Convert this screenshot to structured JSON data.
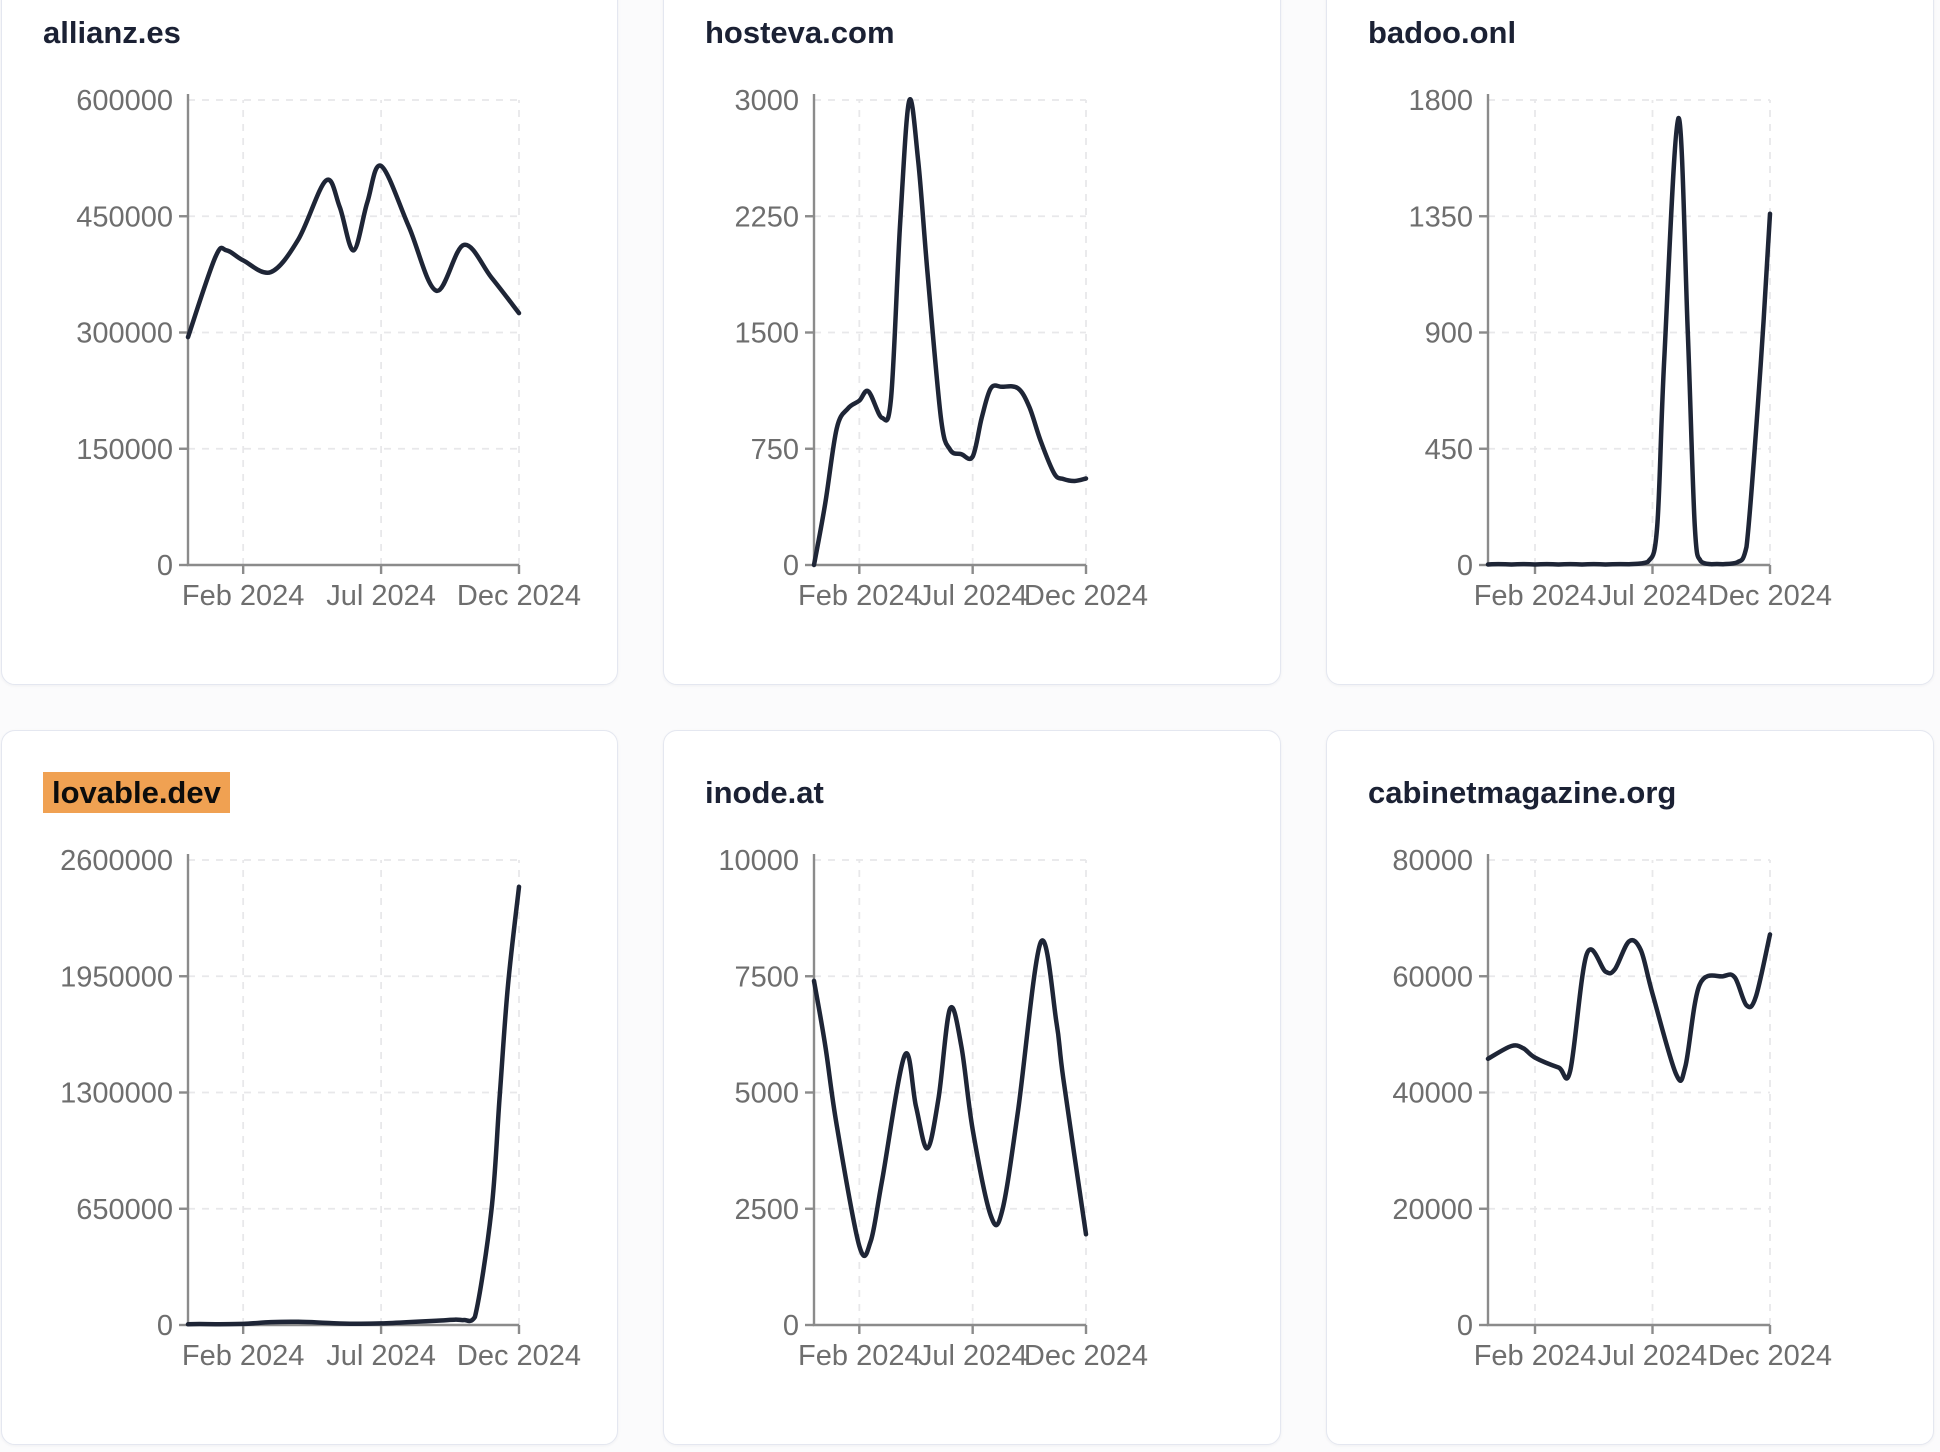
{
  "page": {
    "background": "#fbfbfc",
    "card_background": "#ffffff",
    "card_border_color": "#e4e7f0",
    "title_color": "#1b2134",
    "highlight_color": "#f0a152",
    "line_color": "#1e2536",
    "axis_color": "#8b8b8b",
    "tick_label_color": "#6e6e6e",
    "grid_color": "#e8e8ea"
  },
  "chart_data": [
    {
      "type": "line",
      "title": "allianz.es",
      "highlighted": false,
      "x_domain": [
        0,
        12
      ],
      "x_tick_positions": [
        2,
        7,
        12
      ],
      "x_tick_labels": [
        "Feb 2024",
        "Jul 2024",
        "Dec 2024"
      ],
      "y_ticks": [
        0,
        150000,
        300000,
        450000,
        600000
      ],
      "y_max": 600000,
      "points": [
        [
          0,
          294000
        ],
        [
          1,
          398000
        ],
        [
          1.4,
          406000
        ],
        [
          2,
          393000
        ],
        [
          3,
          378000
        ],
        [
          4,
          420000
        ],
        [
          5,
          496000
        ],
        [
          5.5,
          462000
        ],
        [
          6,
          406000
        ],
        [
          6.5,
          468000
        ],
        [
          7,
          515000
        ],
        [
          8,
          437000
        ],
        [
          9,
          354000
        ],
        [
          10,
          413000
        ],
        [
          11,
          371000
        ],
        [
          12,
          325000
        ]
      ]
    },
    {
      "type": "line",
      "title": "hosteva.com",
      "highlighted": false,
      "x_domain": [
        0,
        12
      ],
      "x_tick_positions": [
        2,
        7,
        12
      ],
      "x_tick_labels": [
        "Feb 2024",
        "Jul 2024",
        "Dec 2024"
      ],
      "y_ticks": [
        0,
        750,
        1500,
        2250,
        3000
      ],
      "y_max": 3000,
      "points": [
        [
          0,
          0
        ],
        [
          0.5,
          400
        ],
        [
          1,
          880
        ],
        [
          1.5,
          1010
        ],
        [
          2,
          1060
        ],
        [
          2.4,
          1120
        ],
        [
          3,
          950
        ],
        [
          3.4,
          1080
        ],
        [
          3.8,
          2200
        ],
        [
          4.2,
          2995
        ],
        [
          4.6,
          2600
        ],
        [
          5,
          1900
        ],
        [
          5.6,
          950
        ],
        [
          6,
          745
        ],
        [
          6.5,
          715
        ],
        [
          7,
          700
        ],
        [
          7.4,
          950
        ],
        [
          7.8,
          1140
        ],
        [
          8.3,
          1150
        ],
        [
          9,
          1140
        ],
        [
          9.5,
          1020
        ],
        [
          10,
          800
        ],
        [
          10.6,
          590
        ],
        [
          11,
          555
        ],
        [
          11.5,
          542
        ],
        [
          12,
          558
        ]
      ]
    },
    {
      "type": "line",
      "title": "badoo.onl",
      "highlighted": false,
      "x_domain": [
        0,
        12
      ],
      "x_tick_positions": [
        2,
        7,
        12
      ],
      "x_tick_labels": [
        "Feb 2024",
        "Jul 2024",
        "Dec 2024"
      ],
      "y_ticks": [
        0,
        450,
        900,
        1350,
        1800
      ],
      "y_max": 1800,
      "points": [
        [
          0,
          2
        ],
        [
          1,
          2
        ],
        [
          2,
          2
        ],
        [
          3,
          2
        ],
        [
          4,
          2
        ],
        [
          5,
          2
        ],
        [
          6,
          3
        ],
        [
          6.8,
          12
        ],
        [
          7.2,
          150
        ],
        [
          7.5,
          800
        ],
        [
          8.1,
          1730
        ],
        [
          8.5,
          900
        ],
        [
          8.8,
          150
        ],
        [
          9.05,
          15
        ],
        [
          9.5,
          3
        ],
        [
          10,
          3
        ],
        [
          10.6,
          10
        ],
        [
          11,
          70
        ],
        [
          11.6,
          770
        ],
        [
          12,
          1360
        ]
      ]
    },
    {
      "type": "line",
      "title": "lovable.dev",
      "highlighted": true,
      "x_domain": [
        0,
        12
      ],
      "x_tick_positions": [
        2,
        7,
        12
      ],
      "x_tick_labels": [
        "Feb 2024",
        "Jul 2024",
        "Dec 2024"
      ],
      "y_ticks": [
        0,
        650000,
        1300000,
        1950000,
        2600000
      ],
      "y_max": 2600000,
      "points": [
        [
          0,
          4000
        ],
        [
          1,
          4000
        ],
        [
          2,
          6000
        ],
        [
          3,
          16000
        ],
        [
          4,
          18000
        ],
        [
          5,
          12000
        ],
        [
          6,
          7000
        ],
        [
          7,
          9000
        ],
        [
          8,
          16000
        ],
        [
          9,
          24000
        ],
        [
          9.7,
          30000
        ],
        [
          10,
          28000
        ],
        [
          10.4,
          45000
        ],
        [
          11,
          640000
        ],
        [
          11.3,
          1280000
        ],
        [
          11.6,
          1900000
        ],
        [
          12,
          2450000
        ]
      ]
    },
    {
      "type": "line",
      "title": "inode.at",
      "highlighted": false,
      "x_domain": [
        0,
        12
      ],
      "x_tick_positions": [
        2,
        7,
        12
      ],
      "x_tick_labels": [
        "Feb 2024",
        "Jul 2024",
        "Dec 2024"
      ],
      "y_ticks": [
        0,
        2500,
        5000,
        7500,
        10000
      ],
      "y_max": 10000,
      "points": [
        [
          0,
          7400
        ],
        [
          0.5,
          6000
        ],
        [
          1,
          4300
        ],
        [
          2,
          1700
        ],
        [
          2.5,
          1800
        ],
        [
          3,
          3100
        ],
        [
          4,
          5800
        ],
        [
          4.5,
          4700
        ],
        [
          5,
          3800
        ],
        [
          5.5,
          4900
        ],
        [
          6,
          6800
        ],
        [
          6.5,
          6000
        ],
        [
          7,
          4200
        ],
        [
          7.8,
          2350
        ],
        [
          8.3,
          2450
        ],
        [
          9,
          4600
        ],
        [
          10,
          8230
        ],
        [
          10.7,
          6500
        ],
        [
          11,
          5300
        ],
        [
          12,
          1950
        ]
      ]
    },
    {
      "type": "line",
      "title": "cabinetmagazine.org",
      "highlighted": false,
      "x_domain": [
        0,
        12
      ],
      "x_tick_positions": [
        2,
        7,
        12
      ],
      "x_tick_labels": [
        "Feb 2024",
        "Jul 2024",
        "Dec 2024"
      ],
      "y_ticks": [
        0,
        20000,
        40000,
        60000,
        80000
      ],
      "y_max": 80000,
      "points": [
        [
          0,
          45800
        ],
        [
          1,
          48000
        ],
        [
          1.5,
          47600
        ],
        [
          2,
          46000
        ],
        [
          3,
          44300
        ],
        [
          3.5,
          43800
        ],
        [
          4.2,
          63800
        ],
        [
          5,
          60800
        ],
        [
          5.4,
          61200
        ],
        [
          6,
          66000
        ],
        [
          6.5,
          64500
        ],
        [
          7,
          57000
        ],
        [
          8,
          43200
        ],
        [
          8.4,
          44500
        ],
        [
          9,
          58500
        ],
        [
          10,
          60000
        ],
        [
          10.5,
          59800
        ],
        [
          11,
          55000
        ],
        [
          11.4,
          56500
        ],
        [
          12,
          67200
        ]
      ]
    }
  ]
}
